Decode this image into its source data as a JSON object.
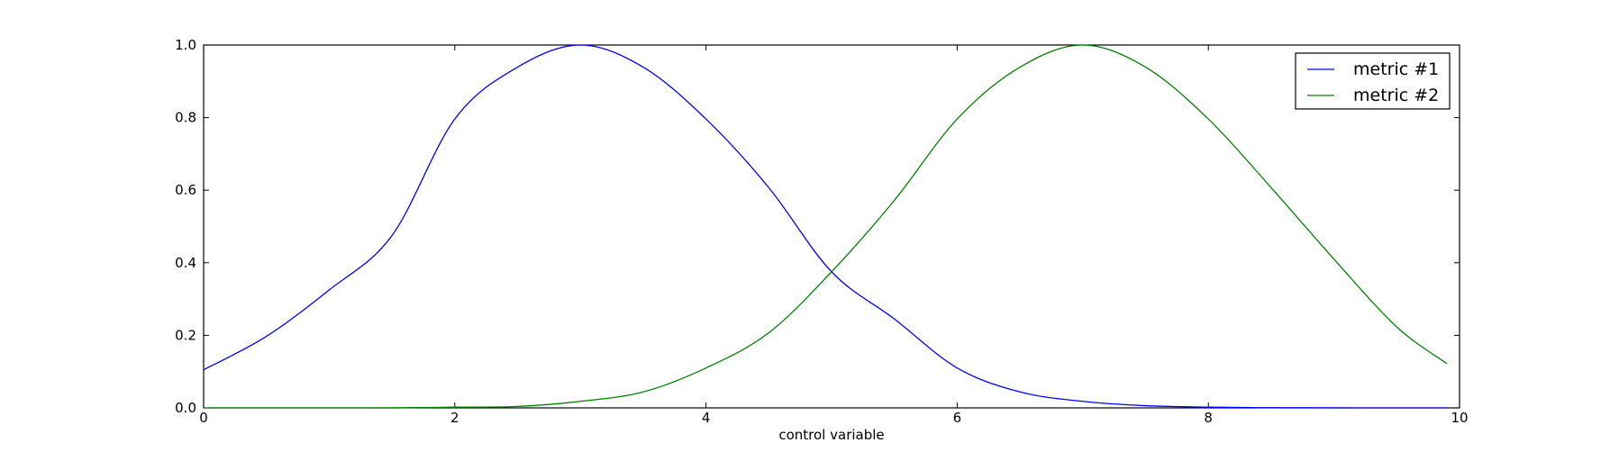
{
  "chart_data": {
    "type": "line",
    "title": "",
    "xlabel": "control variable",
    "ylabel": "",
    "xlim": [
      0,
      10
    ],
    "ylim": [
      0,
      1.0
    ],
    "xticks": [
      "0",
      "2",
      "4",
      "6",
      "8",
      "10"
    ],
    "yticks": [
      "0.0",
      "0.2",
      "0.4",
      "0.6",
      "0.8",
      "1.0"
    ],
    "grid": false,
    "legend_position": "top-right",
    "series": [
      {
        "name": "metric #1",
        "color": "#0000ff",
        "x": [
          0,
          0.5,
          1,
          1.5,
          2,
          2.5,
          3,
          3.5,
          4,
          4.5,
          5,
          5.5,
          6,
          6.5,
          7,
          7.5,
          8,
          8.5,
          9,
          9.5,
          9.9
        ],
        "y": [
          0.105,
          0.197,
          0.325,
          0.475,
          0.796,
          0.939,
          1.0,
          0.939,
          0.796,
          0.607,
          0.375,
          0.245,
          0.11,
          0.044,
          0.018,
          0.006,
          0.002,
          0.0005,
          0.0001,
          0.0,
          0.0
        ]
      },
      {
        "name": "metric #2",
        "color": "#008000",
        "x": [
          0,
          0.5,
          1,
          1.5,
          2,
          2.5,
          3,
          3.5,
          4,
          4.5,
          5,
          5.5,
          6,
          6.5,
          7,
          7.5,
          8,
          8.5,
          9,
          9.5,
          9.9
        ],
        "y": [
          0.0,
          0.0,
          0.0,
          0.0001,
          0.002,
          0.004,
          0.018,
          0.044,
          0.11,
          0.207,
          0.375,
          0.572,
          0.796,
          0.939,
          1.0,
          0.939,
          0.796,
          0.607,
          0.41,
          0.223,
          0.122
        ]
      }
    ]
  }
}
